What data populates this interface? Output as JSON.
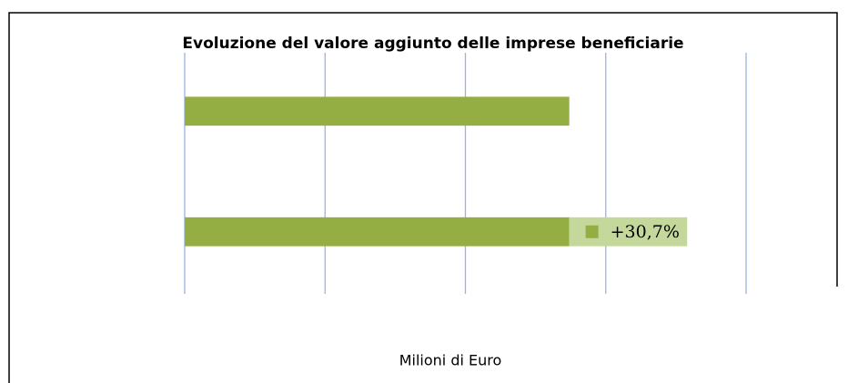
{
  "chart_data": {
    "type": "bar",
    "orientation": "horizontal",
    "stacked": true,
    "title": "Evoluzione del valore aggiunto delle imprese beneficiarie",
    "x_label": "Milioni di Euro",
    "categories": [
      null,
      null
    ],
    "series": [
      {
        "color": "#94ae44",
        "values": [
          2.74,
          2.74
        ]
      },
      {
        "color": "#c4d89c",
        "values": [
          null,
          0.84
        ],
        "value_labels": [
          null,
          "+30,7%"
        ]
      }
    ],
    "xlim": [
      0,
      4
    ],
    "xticks": [
      0,
      1,
      2,
      3,
      4
    ],
    "grid": true
  }
}
